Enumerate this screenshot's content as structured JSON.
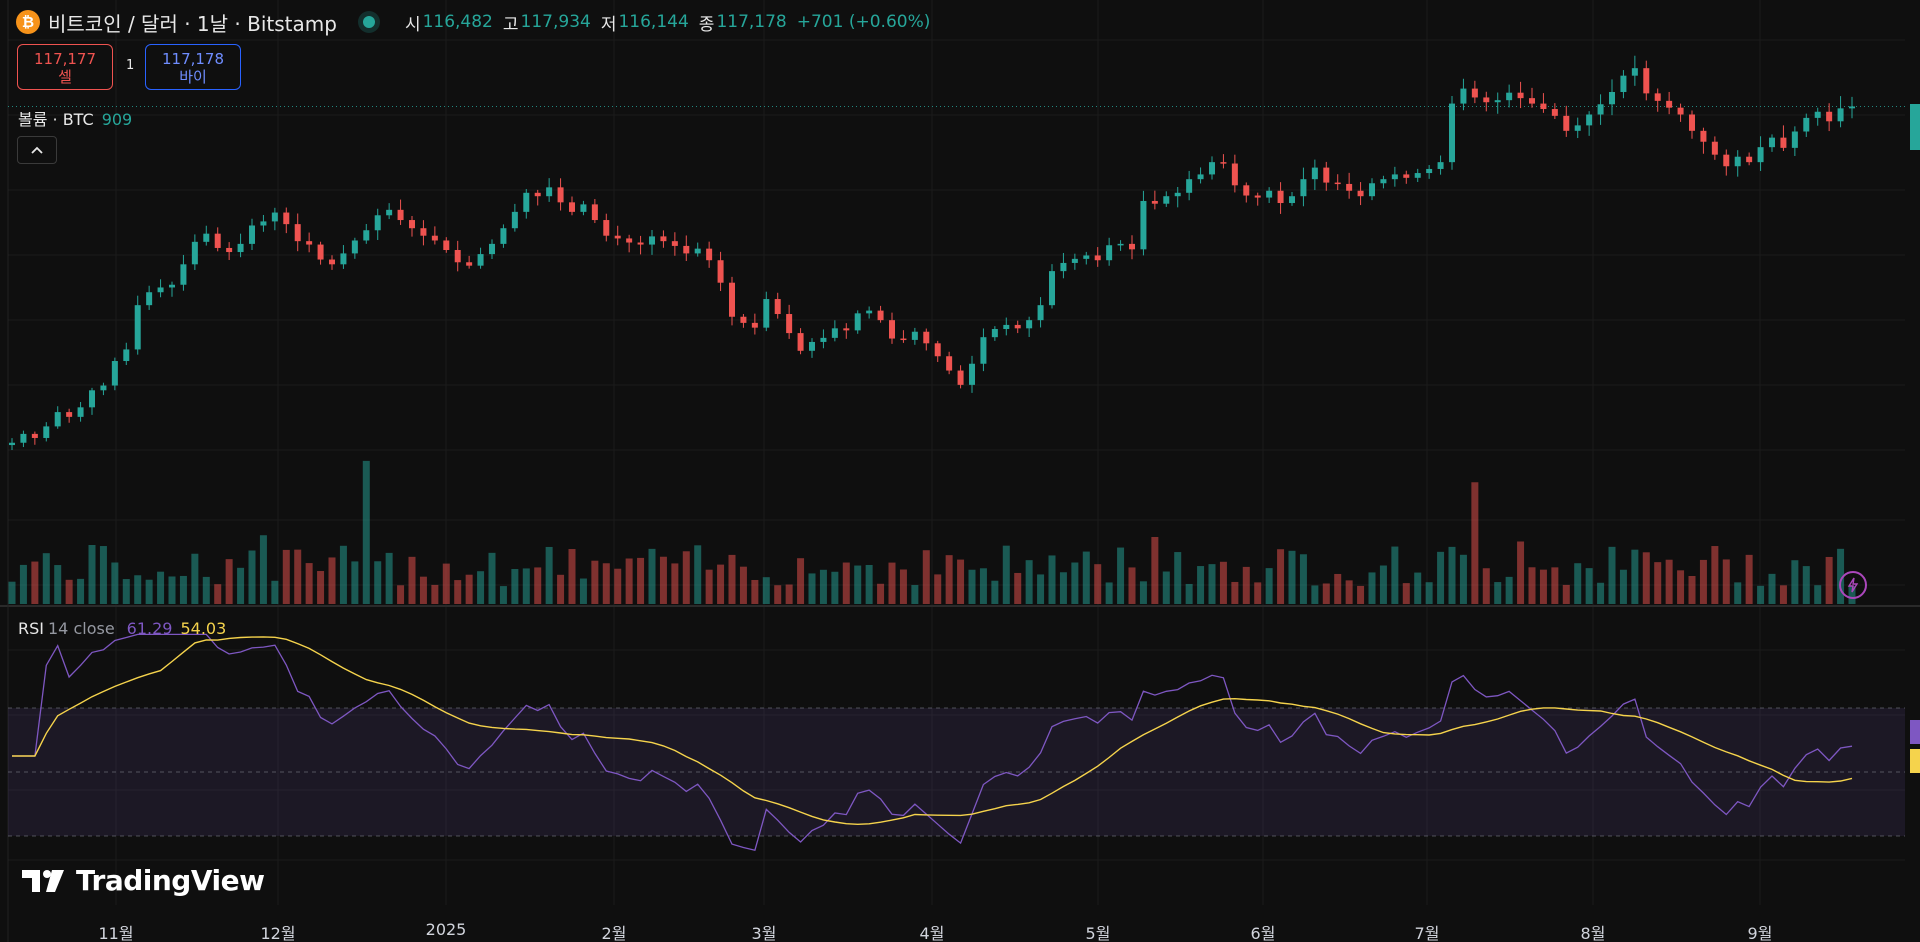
{
  "header": {
    "coin_icon": "bitcoin-icon",
    "coin_glyph": "₿",
    "title": "비트코인 / 달러 · 1날 · Bitstamp",
    "ohlc": [
      {
        "key": "시",
        "value": "116,482"
      },
      {
        "key": "고",
        "value": "117,934"
      },
      {
        "key": "저",
        "value": "116,144"
      },
      {
        "key": "종",
        "value": "117,178"
      }
    ],
    "change": "+701 (+0.60%)"
  },
  "trade": {
    "sell_price": "117,177",
    "sell_label": "셀",
    "quantity": "1",
    "buy_price": "117,178",
    "buy_label": "바이"
  },
  "volume_legend": {
    "label": "볼륨 · BTC",
    "value": "909"
  },
  "collapse_icon": "chevron-up-icon",
  "rsi_legend": {
    "label": "RSI",
    "params": "14 close",
    "rsi_value": "61.29",
    "ma_value": "54.03"
  },
  "branding": {
    "logo_text": "TradingView"
  },
  "x_axis": {
    "labels": [
      "11월",
      "12월",
      "2025",
      "2월",
      "3월",
      "4월",
      "5월",
      "6월",
      "7월",
      "8월",
      "9월"
    ]
  },
  "colors": {
    "up": "#26a69a",
    "down": "#ef5350",
    "rsi": "#7e57c2",
    "rsi_ma": "#f5d34c",
    "background": "#0f0f0f"
  },
  "chart_data": {
    "type": "candlestick",
    "series": [
      {
        "name": "close",
        "values": [
          67800,
          69100,
          68500,
          70200,
          72300,
          71600,
          73000,
          75500,
          76200,
          79800,
          81500,
          88000,
          89900,
          90600,
          91000,
          94000,
          97300,
          98500,
          96400,
          95800,
          97000,
          99700,
          100300,
          101600,
          99900,
          97400,
          96900,
          94700,
          94000,
          95600,
          97500,
          99000,
          101200,
          102000,
          100500,
          99300,
          98200,
          97500,
          96100,
          94300,
          93800,
          95500,
          97000,
          99300,
          101700,
          104500,
          104000,
          105300,
          103100,
          101700,
          102800,
          100500,
          98200,
          97800,
          97200,
          96900,
          98100,
          97400,
          96700,
          95600,
          96300,
          94600,
          91300,
          86300,
          85400,
          84700,
          88900,
          86700,
          83900,
          81300,
          82600,
          83200,
          84600,
          84300,
          86800,
          87200,
          85800,
          83100,
          82900,
          84100,
          82400,
          80500,
          78400,
          76300,
          79400,
          83300,
          84500,
          85100,
          84600,
          85800,
          88000,
          93000,
          94200,
          94800,
          95300,
          94600,
          96800,
          97000,
          96200,
          103300,
          102900,
          104000,
          104500,
          106500,
          107200,
          109000,
          108800,
          105600,
          104100,
          103800,
          104800,
          103000,
          104000,
          106500,
          108200,
          106000,
          105800,
          104800,
          104000,
          105900,
          106500,
          107200,
          106700,
          107400,
          108000,
          109000,
          117600,
          119800,
          118500,
          117800,
          118100,
          119200,
          118400,
          117600,
          116800,
          115800,
          113600,
          114400,
          116000,
          117500,
          119300,
          121700,
          122800,
          119100,
          118000,
          117000,
          116000,
          113600,
          112000,
          110100,
          108400,
          109800,
          109000,
          111200,
          112600,
          111100,
          113500,
          115500,
          116400,
          115000,
          116900,
          117178
        ]
      }
    ],
    "volume_scale_max_btc": 8000,
    "rsi": {
      "period": 14,
      "source": "close",
      "levels": [
        70,
        50,
        30
      ],
      "last_rsi": 61.29,
      "last_ma": 54.03
    },
    "xlabels": [
      "11월",
      "12월",
      "2025",
      "2월",
      "3월",
      "4월",
      "5월",
      "6월",
      "7월",
      "8월",
      "9월"
    ]
  }
}
